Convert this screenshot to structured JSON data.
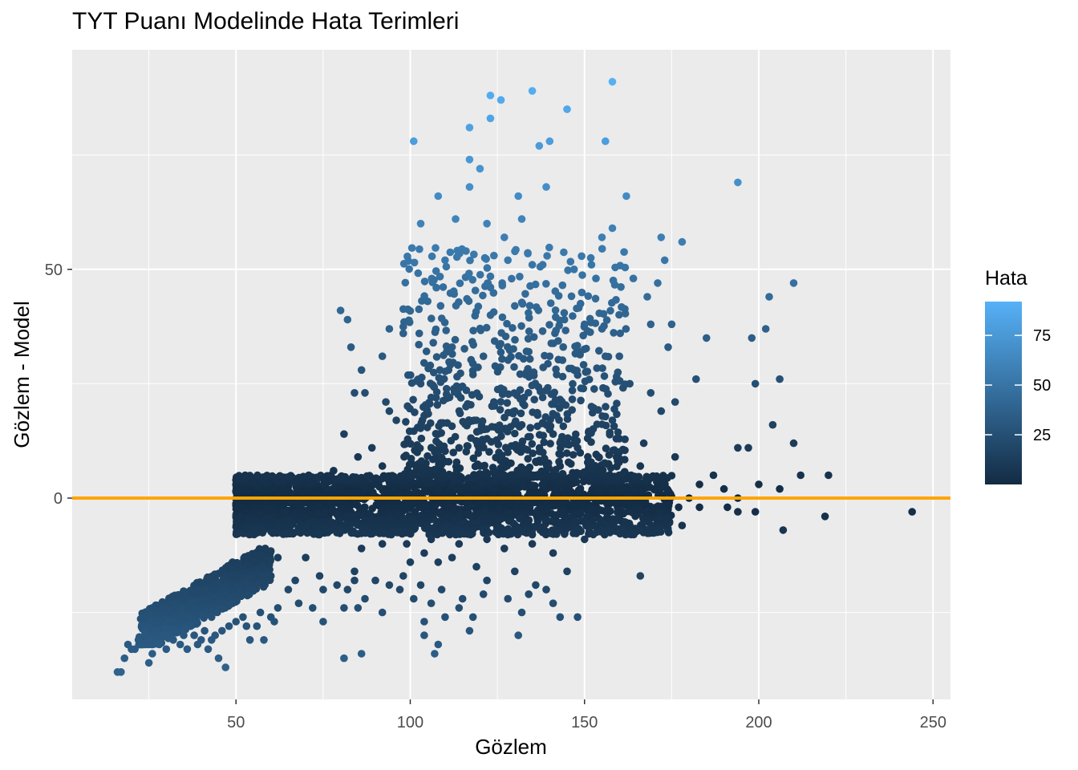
{
  "chart_data": {
    "type": "scatter",
    "title": "TYT Puanı Modelinde Hata Terimleri",
    "xlabel": "Gözlem",
    "ylabel": "Gözlem - Model",
    "xlim": [
      3,
      255
    ],
    "ylim": [
      -44,
      98
    ],
    "x_ticks": [
      50,
      100,
      150,
      200,
      250
    ],
    "y_ticks": [
      0,
      50
    ],
    "grid": true,
    "panel_background": "#ebebeb",
    "reference_line": {
      "y": 0,
      "color": "#ffa500"
    },
    "legend": {
      "title": "Hata",
      "position": "right",
      "range": [
        0,
        92
      ],
      "ticks": [
        25,
        50,
        75
      ],
      "low_color": "#132b43",
      "high_color": "#56b1f7"
    },
    "points": [
      [
        158,
        91
      ],
      [
        135,
        89
      ],
      [
        123,
        88
      ],
      [
        126,
        87
      ],
      [
        145,
        85
      ],
      [
        123,
        83
      ],
      [
        117,
        81
      ],
      [
        101,
        78
      ],
      [
        156,
        78
      ],
      [
        137,
        77
      ],
      [
        140,
        78
      ],
      [
        117,
        74
      ],
      [
        120,
        72
      ],
      [
        194,
        69
      ],
      [
        117,
        68
      ],
      [
        139,
        68
      ],
      [
        108,
        66
      ],
      [
        131,
        66
      ],
      [
        162,
        66
      ],
      [
        113,
        61
      ],
      [
        103,
        60
      ],
      [
        122,
        60
      ],
      [
        132,
        61
      ],
      [
        158,
        59
      ],
      [
        127,
        57
      ],
      [
        155,
        57
      ],
      [
        172,
        57
      ],
      [
        178,
        56
      ],
      [
        116,
        54
      ],
      [
        124,
        53
      ],
      [
        110,
        52
      ],
      [
        128,
        52
      ],
      [
        173,
        52
      ],
      [
        135,
        51
      ],
      [
        152,
        51
      ],
      [
        138,
        51
      ],
      [
        147,
        50
      ],
      [
        164,
        48
      ],
      [
        171,
        47
      ],
      [
        210,
        47
      ],
      [
        203,
        44
      ],
      [
        80,
        41
      ],
      [
        105,
        43
      ],
      [
        130,
        42
      ],
      [
        168,
        44
      ],
      [
        82,
        39
      ],
      [
        94,
        37
      ],
      [
        98,
        36
      ],
      [
        150,
        38
      ],
      [
        155,
        37
      ],
      [
        169,
        38
      ],
      [
        175,
        38
      ],
      [
        202,
        37
      ],
      [
        185,
        35
      ],
      [
        198,
        35
      ],
      [
        83,
        33
      ],
      [
        174,
        33
      ],
      [
        112,
        33
      ],
      [
        121,
        31
      ],
      [
        134,
        32
      ],
      [
        140,
        31
      ],
      [
        156,
        31
      ],
      [
        160,
        31
      ],
      [
        92,
        31
      ],
      [
        86,
        28
      ],
      [
        182,
        26
      ],
      [
        206,
        26
      ],
      [
        199,
        25
      ],
      [
        84,
        23
      ],
      [
        87,
        23
      ],
      [
        111,
        28
      ],
      [
        118,
        27
      ],
      [
        133,
        27
      ],
      [
        142,
        27
      ],
      [
        147,
        28
      ],
      [
        103,
        25
      ],
      [
        114,
        24
      ],
      [
        126,
        24
      ],
      [
        149,
        24
      ],
      [
        163,
        25
      ],
      [
        169,
        23
      ],
      [
        93,
        21
      ],
      [
        106,
        22
      ],
      [
        116,
        20
      ],
      [
        124,
        21
      ],
      [
        130,
        19
      ],
      [
        138,
        22
      ],
      [
        152,
        20
      ],
      [
        176,
        21
      ],
      [
        94,
        19
      ],
      [
        104,
        18
      ],
      [
        119,
        17
      ],
      [
        132,
        16
      ],
      [
        142,
        18
      ],
      [
        158,
        17
      ],
      [
        172,
        19
      ],
      [
        96,
        17
      ],
      [
        204,
        16
      ],
      [
        81,
        14
      ],
      [
        108,
        14
      ],
      [
        122,
        13
      ],
      [
        141,
        14
      ],
      [
        160,
        13
      ],
      [
        210,
        12
      ],
      [
        89,
        11
      ],
      [
        102,
        10
      ],
      [
        114,
        11
      ],
      [
        128,
        10
      ],
      [
        148,
        11
      ],
      [
        167,
        12
      ],
      [
        194,
        11
      ],
      [
        197,
        11
      ],
      [
        85,
        9
      ],
      [
        110,
        8
      ],
      [
        120,
        7
      ],
      [
        136,
        8
      ],
      [
        154,
        9
      ],
      [
        176,
        9
      ],
      [
        92,
        7
      ],
      [
        106,
        6
      ],
      [
        131,
        6
      ],
      [
        143,
        7
      ],
      [
        166,
        7
      ],
      [
        220,
        5
      ],
      [
        212,
        5
      ],
      [
        78,
        6
      ],
      [
        187,
        5
      ],
      [
        200,
        3
      ],
      [
        206,
        2
      ],
      [
        183,
        3
      ],
      [
        190,
        2
      ],
      [
        180,
        0
      ],
      [
        194,
        0
      ],
      [
        191,
        -2
      ],
      [
        194,
        -3
      ],
      [
        199,
        -3
      ],
      [
        207,
        -7
      ],
      [
        219,
        -4
      ],
      [
        244,
        -3
      ],
      [
        177,
        -2
      ],
      [
        183,
        -2
      ],
      [
        169,
        -3
      ],
      [
        178,
        -6
      ],
      [
        173,
        -5
      ],
      [
        166,
        -7
      ],
      [
        163,
        -6
      ],
      [
        155,
        -7
      ],
      [
        161,
        -7
      ],
      [
        148,
        -7
      ],
      [
        142,
        -7
      ],
      [
        135,
        -8
      ],
      [
        128,
        -8
      ],
      [
        121,
        -7
      ],
      [
        113,
        -7
      ],
      [
        108,
        -6
      ],
      [
        96,
        -6
      ],
      [
        88,
        -7
      ],
      [
        80,
        -7
      ],
      [
        72,
        -6
      ],
      [
        65,
        -6
      ],
      [
        59,
        -6
      ],
      [
        54,
        -5
      ],
      [
        99,
        -10
      ],
      [
        106,
        -9
      ],
      [
        114,
        -10
      ],
      [
        122,
        -9
      ],
      [
        135,
        -10
      ],
      [
        150,
        -9
      ],
      [
        104,
        -12
      ],
      [
        112,
        -13
      ],
      [
        127,
        -11
      ],
      [
        141,
        -12
      ],
      [
        86,
        -11
      ],
      [
        92,
        -10
      ],
      [
        100,
        -14
      ],
      [
        108,
        -14
      ],
      [
        119,
        -15
      ],
      [
        122,
        -18
      ],
      [
        130,
        -16
      ],
      [
        145,
        -16
      ],
      [
        166,
        -17
      ],
      [
        98,
        -17
      ],
      [
        103,
        -19
      ],
      [
        109,
        -20
      ],
      [
        115,
        -22
      ],
      [
        121,
        -21
      ],
      [
        136,
        -19
      ],
      [
        139,
        -20
      ],
      [
        94,
        -19
      ],
      [
        90,
        -18
      ],
      [
        84,
        -18
      ],
      [
        82,
        -20
      ],
      [
        87,
        -22
      ],
      [
        85,
        -24
      ],
      [
        75,
        -20
      ],
      [
        72,
        -24
      ],
      [
        81,
        -24
      ],
      [
        92,
        -25
      ],
      [
        97,
        -20
      ],
      [
        101,
        -22
      ],
      [
        106,
        -23
      ],
      [
        114,
        -24
      ],
      [
        118,
        -26
      ],
      [
        128,
        -22
      ],
      [
        134,
        -21
      ],
      [
        141,
        -23
      ],
      [
        143,
        -26
      ],
      [
        148,
        -26
      ],
      [
        132,
        -25
      ],
      [
        110,
        -26
      ],
      [
        104,
        -27
      ],
      [
        75,
        -27
      ],
      [
        68,
        -23
      ],
      [
        65,
        -20
      ],
      [
        62,
        -24
      ],
      [
        60,
        -26
      ],
      [
        57,
        -25
      ],
      [
        56,
        -28
      ],
      [
        53,
        -28
      ],
      [
        54,
        -31
      ],
      [
        108,
        -32
      ],
      [
        104,
        -30
      ],
      [
        117,
        -29
      ],
      [
        131,
        -30
      ],
      [
        81,
        -35
      ],
      [
        86,
        -34
      ],
      [
        107,
        -34
      ],
      [
        58,
        -31
      ],
      [
        61,
        -27
      ],
      [
        79,
        -19
      ],
      [
        67,
        -18
      ],
      [
        60,
        -17
      ],
      [
        74,
        -17
      ],
      [
        84,
        -16
      ],
      [
        55,
        -14
      ],
      [
        62,
        -13
      ],
      [
        70,
        -13
      ],
      [
        49,
        -14
      ],
      [
        47,
        -37
      ],
      [
        16,
        -38
      ],
      [
        17,
        -38
      ],
      [
        18,
        -35
      ],
      [
        19,
        -32
      ],
      [
        20,
        -33
      ],
      [
        21,
        -33
      ],
      [
        22,
        -31
      ],
      [
        23,
        -32
      ],
      [
        24,
        -30
      ],
      [
        25,
        -36
      ],
      [
        26,
        -34
      ],
      [
        27,
        -29
      ],
      [
        28,
        -32
      ],
      [
        29,
        -30
      ],
      [
        30,
        -33
      ],
      [
        31,
        -27
      ],
      [
        32,
        -31
      ],
      [
        33,
        -29
      ],
      [
        34,
        -32
      ],
      [
        35,
        -30
      ],
      [
        36,
        -33
      ],
      [
        37,
        -28
      ],
      [
        38,
        -30
      ],
      [
        39,
        -32
      ],
      [
        40,
        -31
      ],
      [
        41,
        -29
      ],
      [
        42,
        -33
      ],
      [
        43,
        -31
      ],
      [
        45,
        -35
      ],
      [
        44,
        -30
      ],
      [
        46,
        -29
      ],
      [
        48,
        -28
      ],
      [
        50,
        -27
      ],
      [
        52,
        -26
      ],
      [
        24,
        -26
      ],
      [
        26,
        -24
      ],
      [
        28,
        -27
      ],
      [
        29,
        -24
      ],
      [
        31,
        -25
      ],
      [
        33,
        -24
      ],
      [
        35,
        -26
      ],
      [
        37,
        -23
      ],
      [
        39,
        -25
      ],
      [
        41,
        -22
      ],
      [
        43,
        -26
      ],
      [
        45,
        -24
      ],
      [
        47,
        -21
      ],
      [
        49,
        -23
      ],
      [
        51,
        -20
      ]
    ],
    "main_band": {
      "note": "dense residual band around zero",
      "x_range": [
        50,
        175
      ],
      "y_range": [
        -8,
        5
      ]
    },
    "lower_cluster": {
      "x_range": [
        22,
        60
      ],
      "y_range": [
        -28,
        -13
      ]
    },
    "upper_cloud": {
      "x_range": [
        98,
        162
      ],
      "y_range": [
        5,
        55
      ]
    }
  }
}
